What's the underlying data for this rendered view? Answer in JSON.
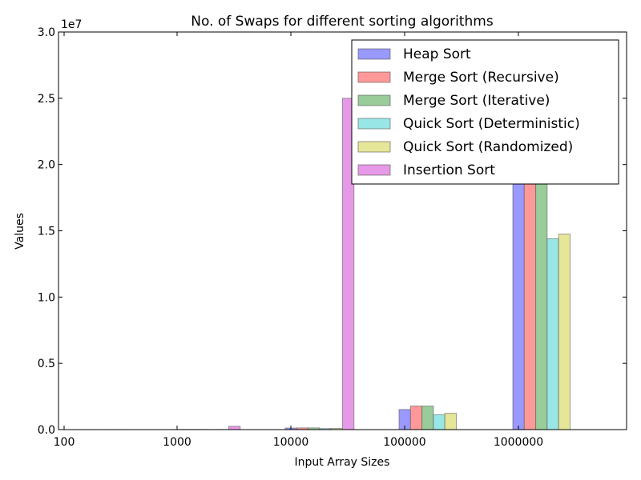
{
  "chart_data": {
    "type": "bar",
    "title": "No. of Swaps for different sorting algorithms",
    "xlabel": "Input Array Sizes",
    "ylabel": "Values",
    "y_scale_label": "1e7",
    "y_multiplier": 10000000,
    "ylim": [
      0,
      30000000
    ],
    "y_ticks": [
      0,
      5000000,
      10000000,
      15000000,
      20000000,
      25000000,
      30000000
    ],
    "y_tick_labels": [
      "0.0",
      "0.5",
      "1.0",
      "1.5",
      "2.0",
      "2.5",
      "3.0"
    ],
    "categories": [
      "100",
      "1000",
      "10000",
      "100000",
      "1000000"
    ],
    "legend_position": "top-right",
    "grid": false,
    "series": [
      {
        "name": "Heap Sort",
        "color": "#9999ff",
        "values": [
          500,
          9000,
          120000,
          1520000,
          18800000
        ]
      },
      {
        "name": "Merge Sort (Recursive)",
        "color": "#ff9999",
        "values": [
          600,
          9500,
          130000,
          1780000,
          20000000
        ]
      },
      {
        "name": "Merge Sort (Iterative)",
        "color": "#99cc99",
        "values": [
          600,
          9500,
          130000,
          1780000,
          20000000
        ]
      },
      {
        "name": "Quick Sort (Deterministic)",
        "color": "#99e6e6",
        "values": [
          300,
          5000,
          80000,
          1120000,
          14400000
        ]
      },
      {
        "name": "Quick Sort (Randomized)",
        "color": "#e6e699",
        "values": [
          350,
          6000,
          90000,
          1230000,
          14750000
        ]
      },
      {
        "name": "Insertion Sort",
        "color": "#e699e6",
        "values": [
          2500,
          250000,
          25000000,
          0,
          0
        ]
      }
    ]
  }
}
